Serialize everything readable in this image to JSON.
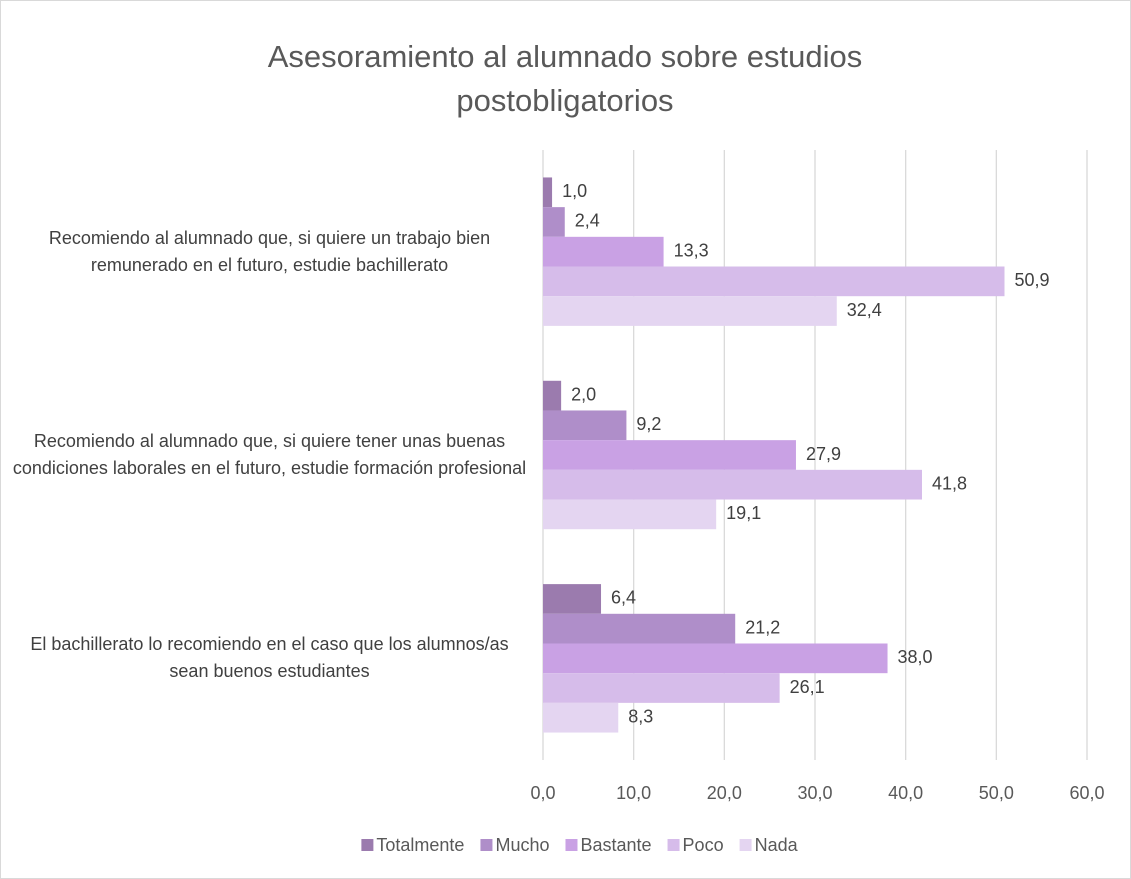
{
  "chart_data": {
    "type": "hbar",
    "title": "Asesoramiento al alumnado sobre estudios postobligatorios",
    "categories": [
      "Recomiendo al alumnado que, si quiere un trabajo bien remunerado en el futuro, estudie bachillerato",
      "Recomiendo al alumnado que, si quiere tener unas buenas condiciones laborales en el futuro, estudie formación profesional",
      "El bachillerato lo recomiendo en el caso que los alumnos/as sean buenos estudiantes"
    ],
    "series": [
      {
        "name": "Totalmente",
        "color": "#9b7bae",
        "values": [
          1.0,
          2.0,
          6.4
        ],
        "value_labels": [
          "1,0",
          "2,0",
          "6,4"
        ]
      },
      {
        "name": "Mucho",
        "color": "#af8ec9",
        "values": [
          2.4,
          9.2,
          21.2
        ],
        "value_labels": [
          "2,4",
          "9,2",
          "21,2"
        ]
      },
      {
        "name": "Bastante",
        "color": "#c9a1e4",
        "values": [
          13.3,
          27.9,
          38.0
        ],
        "value_labels": [
          "13,3",
          "27,9",
          "38,0"
        ]
      },
      {
        "name": "Poco",
        "color": "#d6bcea",
        "values": [
          50.9,
          41.8,
          26.1
        ],
        "value_labels": [
          "50,9",
          "41,8",
          "26,1"
        ]
      },
      {
        "name": "Nada",
        "color": "#e4d5f1",
        "values": [
          32.4,
          19.1,
          8.3
        ],
        "value_labels": [
          "32,4",
          "19,1",
          "8,3"
        ]
      }
    ],
    "xlim": [
      0,
      60
    ],
    "xticks": [
      {
        "value": 0,
        "label": "0,0"
      },
      {
        "value": 10,
        "label": "10,0"
      },
      {
        "value": 20,
        "label": "20,0"
      },
      {
        "value": 30,
        "label": "30,0"
      },
      {
        "value": 40,
        "label": "40,0"
      },
      {
        "value": 50,
        "label": "50,0"
      },
      {
        "value": 60,
        "label": "60,0"
      }
    ],
    "grid": true,
    "legend": "bottom"
  }
}
